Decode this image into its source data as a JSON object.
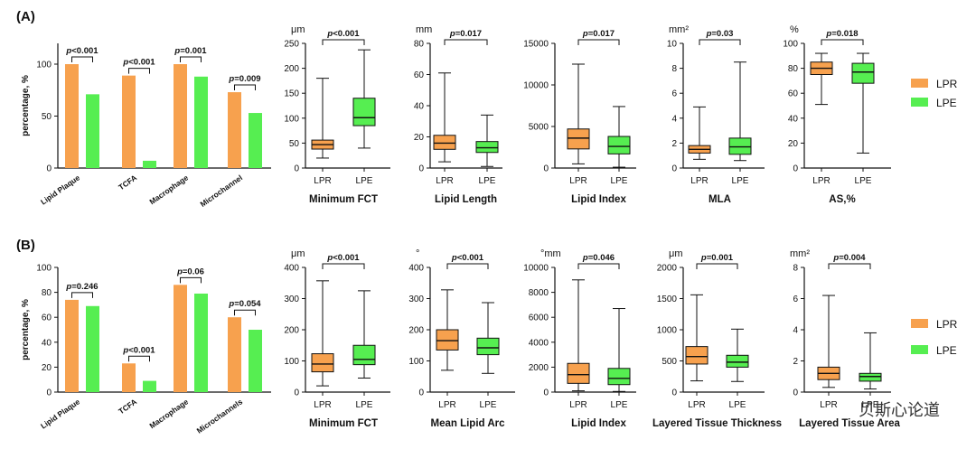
{
  "colors": {
    "LPR": "#f7a14e",
    "LPE": "#56ee51",
    "axis": "#111111"
  },
  "legend": {
    "LPR": "LPR",
    "LPE": "LPE"
  },
  "watermark": "贝斯心论道",
  "chart_data": [
    {
      "panel": "(A)",
      "type": "bar",
      "ylabel": "percentage, %",
      "ylim": [
        0,
        120
      ],
      "yticks": [
        0,
        50,
        100
      ],
      "categories": [
        "Lipid Plaque",
        "TCFA",
        "Macrophage",
        "Microchannel"
      ],
      "series": [
        {
          "name": "LPR",
          "values": [
            100,
            89,
            100,
            73
          ]
        },
        {
          "name": "LPE",
          "values": [
            71,
            7,
            88,
            53
          ]
        }
      ],
      "pvalues": [
        "p<0.001",
        "p<0.001",
        "p=0.001",
        "p=0.009"
      ]
    },
    {
      "panel": "(A)",
      "type": "box",
      "title": "Minimum  FCT",
      "unit": "μm",
      "ylim": [
        0,
        250
      ],
      "yticks": [
        0,
        50,
        100,
        150,
        200,
        250
      ],
      "categories": [
        "LPR",
        "LPE"
      ],
      "boxes": [
        {
          "name": "LPR",
          "min": 20,
          "q1": 38,
          "median": 47,
          "q3": 56,
          "max": 180
        },
        {
          "name": "LPE",
          "min": 40,
          "q1": 85,
          "median": 101,
          "q3": 140,
          "max": 237
        }
      ],
      "pvalue": "p<0.001"
    },
    {
      "panel": "(A)",
      "type": "box",
      "title": "Lipid Length",
      "unit": "mm",
      "ylim": [
        0,
        80
      ],
      "yticks": [
        0,
        20,
        40,
        60,
        80
      ],
      "categories": [
        "LPR",
        "LPE"
      ],
      "boxes": [
        {
          "name": "LPR",
          "min": 4,
          "q1": 12,
          "median": 16,
          "q3": 21,
          "max": 61
        },
        {
          "name": "LPE",
          "min": 1,
          "q1": 10,
          "median": 13,
          "q3": 17,
          "max": 34
        }
      ],
      "pvalue": "p=0.017"
    },
    {
      "panel": "(A)",
      "type": "box",
      "title": "Lipid Index",
      "unit": "",
      "ylim": [
        0,
        15000
      ],
      "yticks": [
        0,
        5000,
        10000,
        15000
      ],
      "categories": [
        "LPR",
        "LPE"
      ],
      "boxes": [
        {
          "name": "LPR",
          "min": 500,
          "q1": 2300,
          "median": 3600,
          "q3": 4700,
          "max": 12500
        },
        {
          "name": "LPE",
          "min": 100,
          "q1": 1700,
          "median": 2600,
          "q3": 3800,
          "max": 7400
        }
      ],
      "pvalue": "p=0.017"
    },
    {
      "panel": "(A)",
      "type": "box",
      "title": "MLA",
      "unit": "mm²",
      "ylim": [
        0,
        10
      ],
      "yticks": [
        0,
        2,
        4,
        6,
        8,
        10
      ],
      "categories": [
        "LPR",
        "LPE"
      ],
      "boxes": [
        {
          "name": "LPR",
          "min": 0.7,
          "q1": 1.2,
          "median": 1.5,
          "q3": 1.8,
          "max": 4.9
        },
        {
          "name": "LPE",
          "min": 0.6,
          "q1": 1.1,
          "median": 1.7,
          "q3": 2.4,
          "max": 8.5
        }
      ],
      "pvalue": "p=0.03"
    },
    {
      "panel": "(A)",
      "type": "box",
      "title": "AS,%",
      "unit": "%",
      "ylim": [
        0,
        100
      ],
      "yticks": [
        0,
        20,
        40,
        60,
        80,
        100
      ],
      "categories": [
        "LPR",
        "LPE"
      ],
      "boxes": [
        {
          "name": "LPR",
          "min": 51,
          "q1": 75,
          "median": 80,
          "q3": 85,
          "max": 92
        },
        {
          "name": "LPE",
          "min": 12,
          "q1": 68,
          "median": 77,
          "q3": 84,
          "max": 92
        }
      ],
      "pvalue": "p=0.018"
    },
    {
      "panel": "(B)",
      "type": "bar",
      "ylabel": "percentage, %",
      "ylim": [
        0,
        100
      ],
      "yticks": [
        0,
        20,
        40,
        60,
        80,
        100
      ],
      "categories": [
        "Lipid Plaque",
        "TCFA",
        "Macrophage",
        "Microchannels"
      ],
      "series": [
        {
          "name": "LPR",
          "values": [
            74,
            23,
            86,
            60
          ]
        },
        {
          "name": "LPE",
          "values": [
            69,
            9,
            79,
            50
          ]
        }
      ],
      "pvalues": [
        "p=0.246",
        "p<0.001",
        "p=0.06",
        "p=0.054"
      ]
    },
    {
      "panel": "(B)",
      "type": "box",
      "title": "Minimum  FCT",
      "unit": "μm",
      "ylim": [
        0,
        400
      ],
      "yticks": [
        0,
        100,
        200,
        300,
        400
      ],
      "categories": [
        "LPR",
        "LPE"
      ],
      "boxes": [
        {
          "name": "LPR",
          "min": 20,
          "q1": 65,
          "median": 90,
          "q3": 123,
          "max": 357
        },
        {
          "name": "LPE",
          "min": 45,
          "q1": 88,
          "median": 105,
          "q3": 150,
          "max": 325
        }
      ],
      "pvalue": "p<0.001"
    },
    {
      "panel": "(B)",
      "type": "box",
      "title": "Mean Lipid Arc",
      "unit": "°",
      "ylim": [
        0,
        400
      ],
      "yticks": [
        0,
        100,
        200,
        300,
        400
      ],
      "categories": [
        "LPR",
        "LPE"
      ],
      "boxes": [
        {
          "name": "LPR",
          "min": 70,
          "q1": 135,
          "median": 165,
          "q3": 200,
          "max": 328
        },
        {
          "name": "LPE",
          "min": 60,
          "q1": 120,
          "median": 142,
          "q3": 173,
          "max": 287
        }
      ],
      "pvalue": "p<0.001"
    },
    {
      "panel": "(B)",
      "type": "box",
      "title": "Lipid Index",
      "unit": "°mm",
      "ylim": [
        0,
        10000
      ],
      "yticks": [
        0,
        2000,
        4000,
        6000,
        8000,
        10000
      ],
      "categories": [
        "LPR",
        "LPE"
      ],
      "boxes": [
        {
          "name": "LPR",
          "min": 100,
          "q1": 700,
          "median": 1400,
          "q3": 2300,
          "max": 9000
        },
        {
          "name": "LPE",
          "min": 50,
          "q1": 600,
          "median": 1100,
          "q3": 1900,
          "max": 6700
        }
      ],
      "pvalue": "p=0.046"
    },
    {
      "panel": "(B)",
      "type": "box",
      "title": "Layered Tissue Thickness",
      "unit": "μm",
      "ylim": [
        0,
        2000
      ],
      "yticks": [
        0,
        500,
        1000,
        1500,
        2000
      ],
      "categories": [
        "LPR",
        "LPE"
      ],
      "boxes": [
        {
          "name": "LPR",
          "min": 180,
          "q1": 450,
          "median": 570,
          "q3": 730,
          "max": 1560
        },
        {
          "name": "LPE",
          "min": 170,
          "q1": 400,
          "median": 480,
          "q3": 590,
          "max": 1010
        }
      ],
      "pvalue": "p=0.001"
    },
    {
      "panel": "(B)",
      "type": "box",
      "title": "Layered Tissue Area",
      "unit": "mm²",
      "ylim": [
        0,
        8
      ],
      "yticks": [
        0,
        2,
        4,
        6,
        8
      ],
      "categories": [
        "LPR",
        "LPE"
      ],
      "boxes": [
        {
          "name": "LPR",
          "min": 0.3,
          "q1": 0.8,
          "median": 1.2,
          "q3": 1.6,
          "max": 6.2
        },
        {
          "name": "LPE",
          "min": 0.2,
          "q1": 0.7,
          "median": 1.0,
          "q3": 1.2,
          "max": 3.8
        }
      ],
      "pvalue": "p=0.004"
    }
  ]
}
